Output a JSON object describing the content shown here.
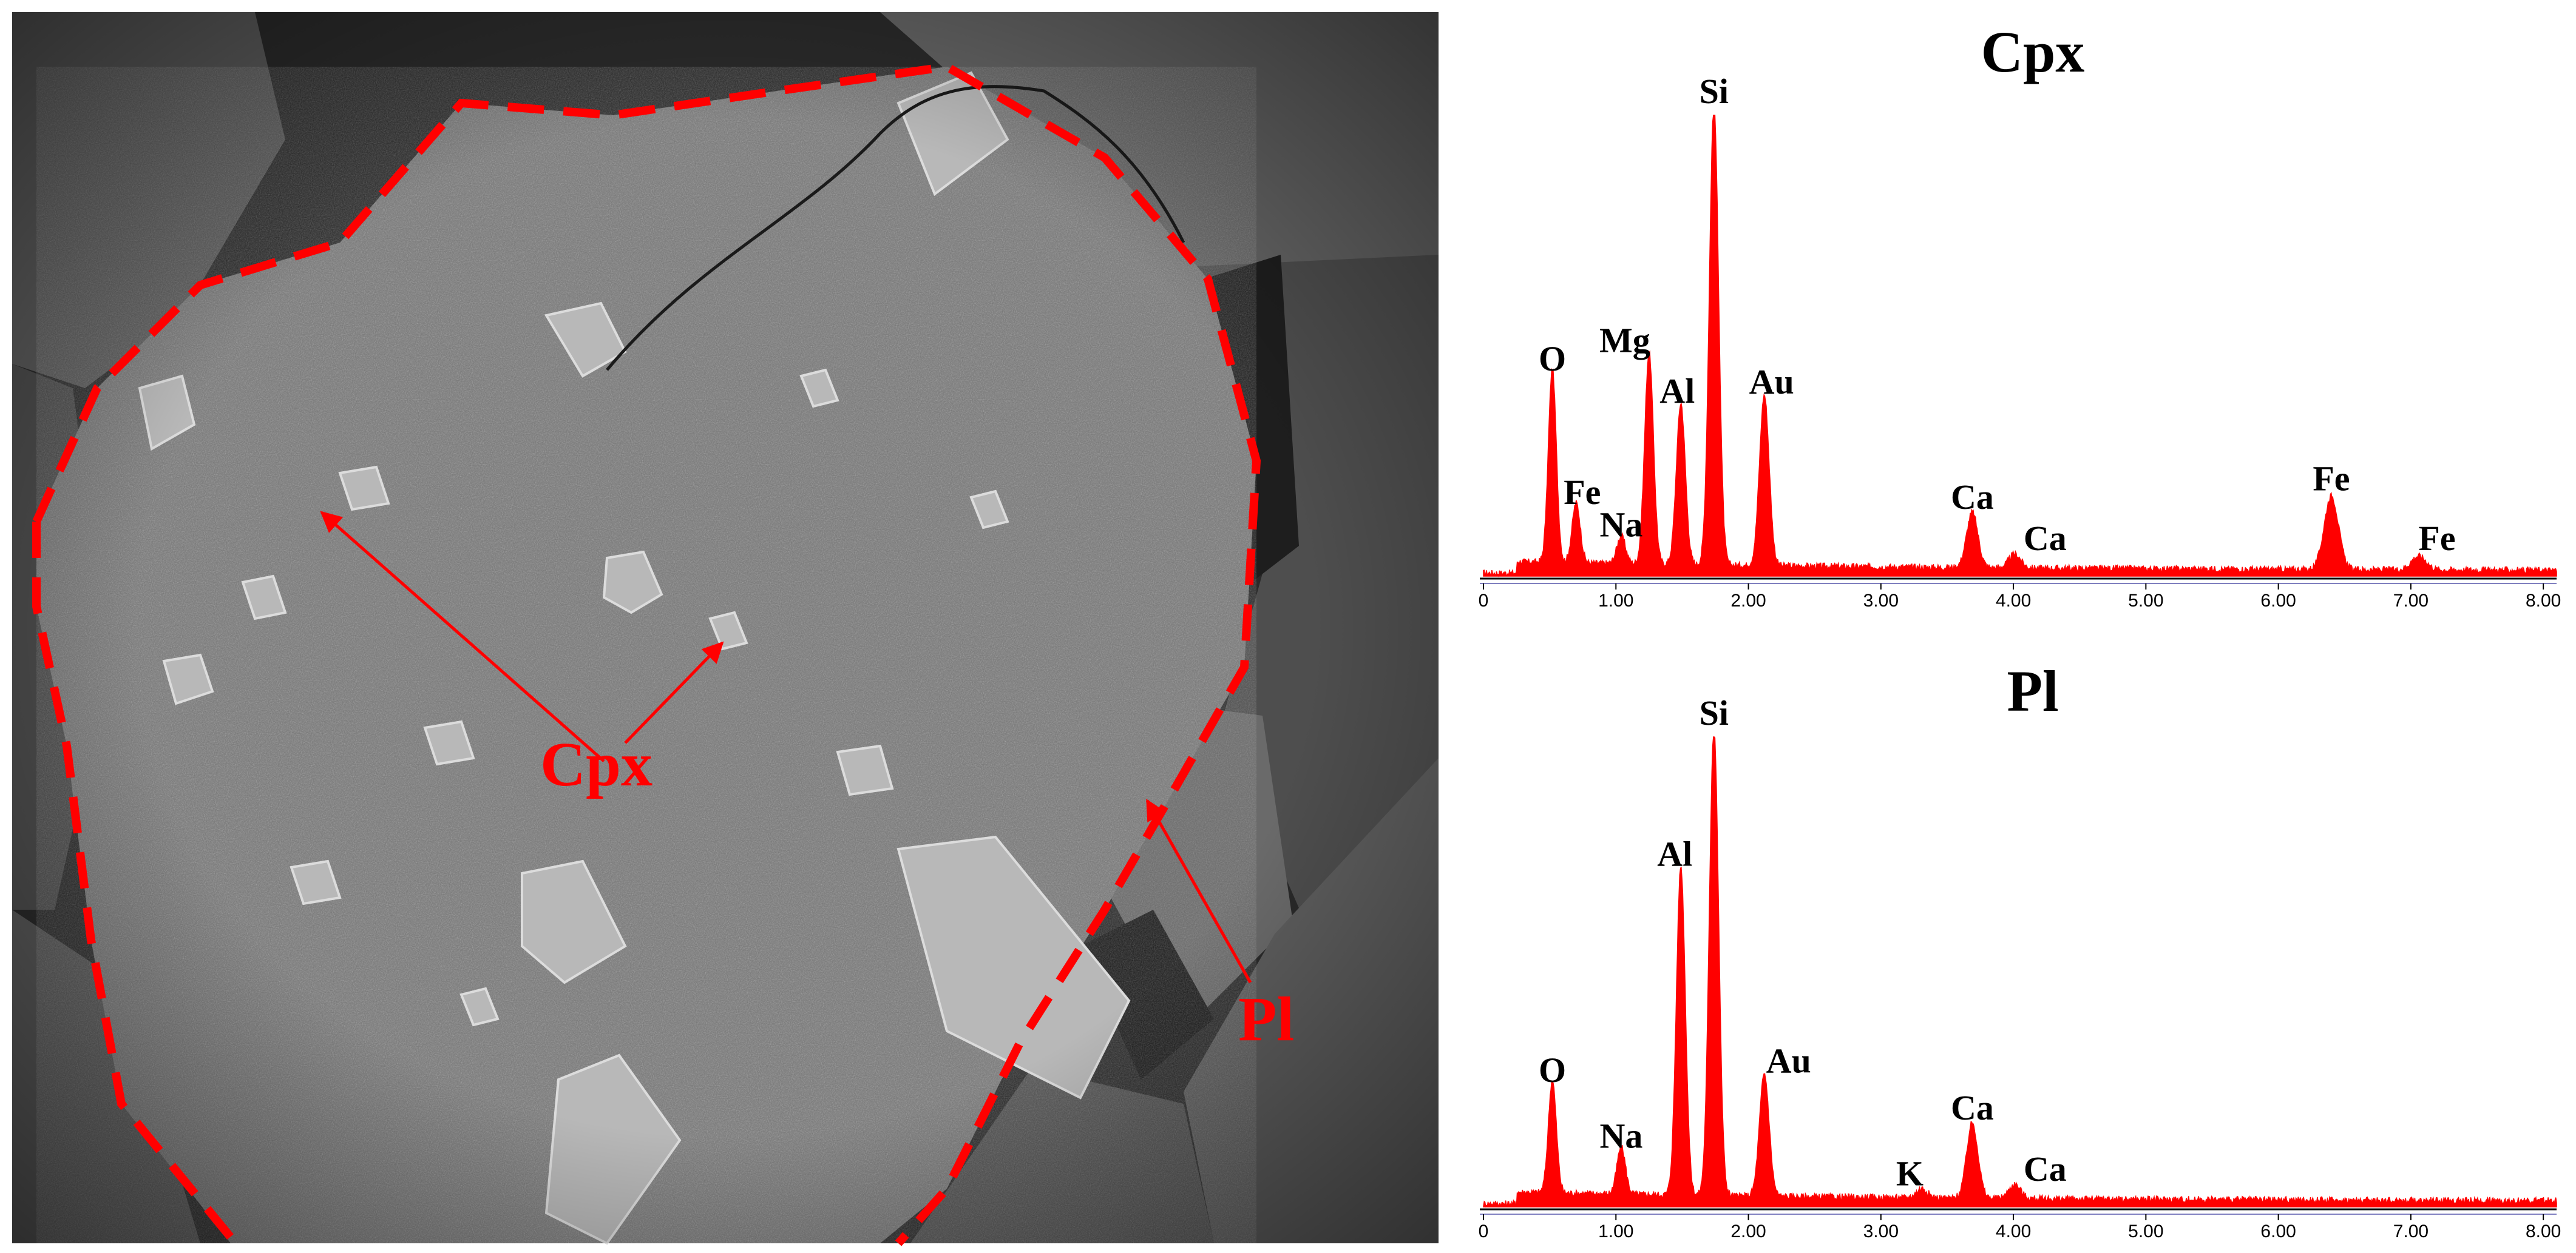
{
  "colors": {
    "spectrum": "#ff0000",
    "annotation": "#ff0000",
    "sem_background": "#6e6e6e",
    "axis": "#000000"
  },
  "sem_image": {
    "labels": [
      {
        "name": "cpx-label",
        "text": "Cpx"
      },
      {
        "name": "pl-label",
        "text": "Pl"
      }
    ]
  },
  "chart_data": [
    {
      "type": "area",
      "title": "Cpx",
      "xlim": [
        0,
        8.1
      ],
      "ylim": [
        0,
        100
      ],
      "x_ticks": [
        "0",
        "1.00",
        "2.00",
        "3.00",
        "4.00",
        "5.00",
        "6.00",
        "7.00",
        "8.00"
      ],
      "peaks": [
        {
          "label": "O",
          "x": 0.52,
          "height": 42
        },
        {
          "label": "Fe",
          "x": 0.7,
          "height": 13
        },
        {
          "label": "Na",
          "x": 1.04,
          "height": 6
        },
        {
          "label": "Mg",
          "x": 1.25,
          "height": 46
        },
        {
          "label": "Al",
          "x": 1.49,
          "height": 35
        },
        {
          "label": "Si",
          "x": 1.74,
          "height": 100
        },
        {
          "label": "Au",
          "x": 2.12,
          "height": 37
        },
        {
          "label": "Ca",
          "x": 3.69,
          "height": 12
        },
        {
          "label": "Ca",
          "x": 4.01,
          "height": 3
        },
        {
          "label": "Fe",
          "x": 6.4,
          "height": 16
        },
        {
          "label": "Fe",
          "x": 7.06,
          "height": 3
        }
      ]
    },
    {
      "type": "area",
      "title": "Pl",
      "xlim": [
        0,
        8.1
      ],
      "ylim": [
        0,
        100
      ],
      "x_ticks": [
        "0",
        "1.00",
        "2.00",
        "3.00",
        "4.00",
        "5.00",
        "6.00",
        "7.00",
        "8.00"
      ],
      "peaks": [
        {
          "label": "O",
          "x": 0.52,
          "height": 24
        },
        {
          "label": "Na",
          "x": 1.04,
          "height": 10
        },
        {
          "label": "Al",
          "x": 1.49,
          "height": 70
        },
        {
          "label": "Si",
          "x": 1.74,
          "height": 100
        },
        {
          "label": "Au",
          "x": 2.12,
          "height": 26
        },
        {
          "label": "K",
          "x": 3.31,
          "height": 2
        },
        {
          "label": "Ca",
          "x": 3.69,
          "height": 16
        },
        {
          "label": "Ca",
          "x": 4.01,
          "height": 3
        }
      ]
    }
  ]
}
